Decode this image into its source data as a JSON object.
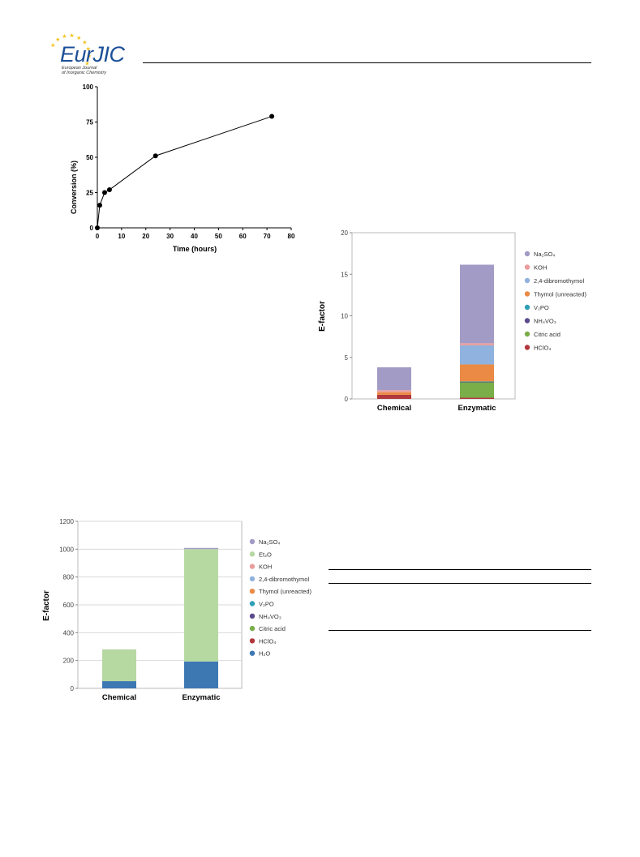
{
  "journal": {
    "logo_main": "EurJIC",
    "logo_sub_line1": "European Journal",
    "logo_sub_line2": "of Inorganic Chemistry"
  },
  "chart_data": [
    {
      "type": "line",
      "title": "",
      "xlabel": "Time (hours)",
      "ylabel": "Conversion (%)",
      "xlim": [
        0,
        80
      ],
      "ylim": [
        0,
        100
      ],
      "xticks": [
        0,
        10,
        20,
        30,
        40,
        50,
        60,
        70,
        80
      ],
      "yticks": [
        0,
        25,
        50,
        75,
        100
      ],
      "grid": false,
      "series": [
        {
          "x": [
            0,
            1,
            3,
            5,
            24,
            72
          ],
          "y": [
            0,
            16,
            25,
            27,
            51,
            79
          ]
        }
      ]
    },
    {
      "type": "bar",
      "stacked": true,
      "title": "",
      "xlabel": "",
      "ylabel": "E-factor",
      "ylim": [
        0,
        20
      ],
      "yticks": [
        0,
        5,
        10,
        15,
        20
      ],
      "categories": [
        "Chemical",
        "Enzymatic"
      ],
      "legend_placement": "right",
      "series": [
        {
          "name": "Na₂SO₄",
          "color": "#a29bc5",
          "values": [
            2.75,
            9.45
          ]
        },
        {
          "name": "KOH",
          "color": "#eb9c9c",
          "values": [
            0.25,
            0.25
          ]
        },
        {
          "name": "2,4-dibromothymol",
          "color": "#8fb2de",
          "values": [
            0.0,
            2.3
          ]
        },
        {
          "name": "Thymol (unreacted)",
          "color": "#ea8a45",
          "values": [
            0.3,
            2.05
          ]
        },
        {
          "name": "V₂PO",
          "color": "#2e9fb6",
          "values": [
            0.0,
            0.05
          ]
        },
        {
          "name": "NH₄VO₃",
          "color": "#5a4a8c",
          "values": [
            0.0,
            0.05
          ]
        },
        {
          "name": "Citric acid",
          "color": "#79ae49",
          "values": [
            0.0,
            1.85
          ]
        },
        {
          "name": "HClO₄",
          "color": "#b1383d",
          "values": [
            0.5,
            0.15
          ]
        }
      ]
    },
    {
      "type": "bar",
      "stacked": true,
      "title": "",
      "xlabel": "",
      "ylabel": "E-factor",
      "ylim": [
        0,
        1200
      ],
      "yticks": [
        0,
        200,
        400,
        600,
        800,
        1000,
        1200
      ],
      "grid": true,
      "categories": [
        "Chemical",
        "Enzymatic"
      ],
      "legend_placement": "right",
      "series": [
        {
          "name": "Na₂SO₄",
          "color": "#a29bc5",
          "values": [
            0,
            8
          ]
        },
        {
          "name": "Et₂O",
          "color": "#b6d9a2",
          "values": [
            228,
            808
          ]
        },
        {
          "name": "KOH",
          "color": "#eb9c9c",
          "values": [
            0,
            0
          ]
        },
        {
          "name": "2,4-dibromothymol",
          "color": "#8fb2de",
          "values": [
            0,
            0
          ]
        },
        {
          "name": "Thymol (unreacted)",
          "color": "#ea8a45",
          "values": [
            0,
            0
          ]
        },
        {
          "name": "V₂PO",
          "color": "#2e9fb6",
          "values": [
            0,
            0
          ]
        },
        {
          "name": "NH₄VO₃",
          "color": "#5a4a8c",
          "values": [
            0,
            0
          ]
        },
        {
          "name": "Citric acid",
          "color": "#79ae49",
          "values": [
            0,
            0
          ]
        },
        {
          "name": "HClO₄",
          "color": "#b1383d",
          "values": [
            0,
            0
          ]
        },
        {
          "name": "H₂O",
          "color": "#3d78b3",
          "values": [
            52,
            193
          ]
        }
      ]
    }
  ]
}
